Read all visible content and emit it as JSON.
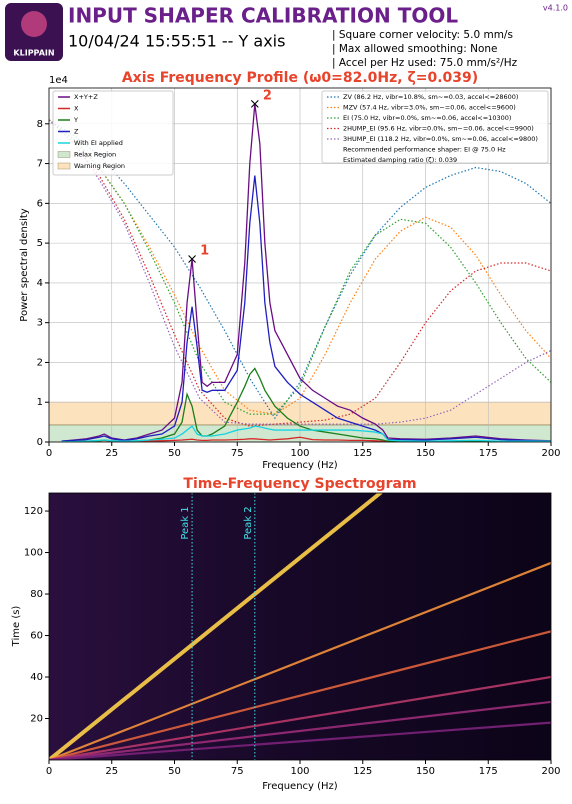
{
  "header": {
    "logo": "KLIPPAIN",
    "title": "INPUT SHAPER CALIBRATION TOOL",
    "subtitle": "10/04/24 15:55:51 -- Y axis",
    "info": [
      "| Square corner velocity: 5.0 mm/s",
      "| Max allowed smoothing: None",
      "| Accel per Hz used: 75.0 mm/s²/Hz"
    ],
    "version": "v4.1.0"
  },
  "chart_data": [
    {
      "type": "line",
      "title": "Axis Frequency Profile (ω0=82.0Hz, ζ=0.039)",
      "xlabel": "Frequency (Hz)",
      "ylabel": "Power spectral density",
      "y_offset_label": "1e4",
      "xlim": [
        0,
        200
      ],
      "ylim": [
        0,
        8.9
      ],
      "y2lim": [
        0,
        8.9
      ],
      "xticks": [
        0,
        25,
        50,
        75,
        100,
        125,
        150,
        175,
        200
      ],
      "yticks": [
        0,
        1,
        2,
        3,
        4,
        5,
        6,
        7,
        8
      ],
      "grid": true,
      "x": [
        5,
        10,
        15,
        20,
        22,
        25,
        30,
        35,
        40,
        45,
        50,
        53,
        55,
        57,
        59,
        61,
        63,
        65,
        70,
        75,
        78,
        80,
        82,
        84,
        86,
        88,
        90,
        95,
        100,
        105,
        110,
        115,
        120,
        125,
        130,
        133,
        135,
        140,
        150,
        160,
        170,
        180,
        190,
        200
      ],
      "series": [
        {
          "name": "X+Y+Z",
          "color": "#6a0d83",
          "values": [
            0.02,
            0.05,
            0.08,
            0.15,
            0.2,
            0.1,
            0.05,
            0.1,
            0.2,
            0.3,
            0.6,
            1.5,
            3.5,
            4.6,
            3.0,
            1.5,
            1.4,
            1.5,
            1.5,
            2.2,
            4.5,
            7.0,
            8.5,
            7.5,
            5.0,
            3.5,
            2.8,
            2.2,
            1.6,
            1.3,
            1.1,
            0.9,
            0.8,
            0.6,
            0.45,
            0.3,
            0.1,
            0.08,
            0.07,
            0.1,
            0.15,
            0.08,
            0.05,
            0.03
          ]
        },
        {
          "name": "X",
          "color": "#d62728",
          "values": [
            0.01,
            0.01,
            0.02,
            0.03,
            0.04,
            0.02,
            0.01,
            0.02,
            0.03,
            0.03,
            0.04,
            0.05,
            0.06,
            0.07,
            0.05,
            0.04,
            0.04,
            0.05,
            0.05,
            0.06,
            0.07,
            0.08,
            0.08,
            0.07,
            0.06,
            0.05,
            0.06,
            0.08,
            0.12,
            0.06,
            0.05,
            0.05,
            0.04,
            0.04,
            0.03,
            0.02,
            0.01,
            0.01,
            0.01,
            0.02,
            0.02,
            0.01,
            0.01,
            0.01
          ]
        },
        {
          "name": "Y",
          "color": "#1a7f1a",
          "values": [
            0.01,
            0.01,
            0.02,
            0.03,
            0.05,
            0.03,
            0.02,
            0.03,
            0.05,
            0.1,
            0.2,
            0.5,
            1.2,
            0.9,
            0.3,
            0.15,
            0.15,
            0.2,
            0.4,
            1.0,
            1.4,
            1.7,
            1.85,
            1.6,
            1.3,
            1.1,
            0.9,
            0.6,
            0.4,
            0.3,
            0.25,
            0.2,
            0.15,
            0.1,
            0.08,
            0.05,
            0.02,
            0.01,
            0.01,
            0.01,
            0.02,
            0.01,
            0.01,
            0.01
          ]
        },
        {
          "name": "Z",
          "color": "#1f1fbf",
          "values": [
            0.02,
            0.04,
            0.06,
            0.12,
            0.15,
            0.08,
            0.04,
            0.08,
            0.15,
            0.2,
            0.4,
            1.0,
            2.5,
            3.4,
            2.4,
            1.3,
            1.25,
            1.3,
            1.3,
            1.8,
            3.5,
            5.5,
            6.7,
            5.5,
            3.5,
            2.5,
            1.9,
            1.5,
            1.2,
            1.0,
            0.8,
            0.6,
            0.5,
            0.4,
            0.3,
            0.2,
            0.06,
            0.06,
            0.05,
            0.08,
            0.12,
            0.06,
            0.04,
            0.02
          ]
        },
        {
          "name": "With EI applied",
          "color": "#17d4e0",
          "values": [
            0.01,
            0.01,
            0.02,
            0.04,
            0.05,
            0.03,
            0.02,
            0.03,
            0.05,
            0.07,
            0.1,
            0.2,
            0.3,
            0.4,
            0.2,
            0.15,
            0.15,
            0.15,
            0.2,
            0.3,
            0.33,
            0.35,
            0.4,
            0.38,
            0.35,
            0.32,
            0.3,
            0.3,
            0.3,
            0.3,
            0.3,
            0.3,
            0.3,
            0.28,
            0.25,
            0.2,
            0.05,
            0.03,
            0.02,
            0.03,
            0.04,
            0.02,
            0.02,
            0.02
          ]
        }
      ],
      "regions": [
        {
          "name": "Relax Region",
          "color": "#cfe8cf",
          "range": [
            0,
            0.43
          ]
        },
        {
          "name": "Warning Region",
          "color": "#fde3bd",
          "range": [
            0.43,
            1.0
          ]
        }
      ],
      "peaks": [
        {
          "label": "1",
          "x": 57,
          "y": 4.6
        },
        {
          "label": "2",
          "x": 82,
          "y": 8.5
        }
      ],
      "shapers": [
        {
          "name": "ZV (86.2 Hz, vibr=10.8%, sm~=0.03, accel<=28600)",
          "color": "#1f77b4",
          "axis": "y2",
          "x": [
            0,
            10,
            20,
            30,
            40,
            50,
            60,
            70,
            80,
            90,
            100,
            110,
            120,
            130,
            140,
            150,
            160,
            170,
            180,
            190,
            200
          ],
          "values": [
            8.1,
            7.7,
            7.2,
            6.5,
            5.7,
            4.9,
            3.9,
            2.8,
            1.6,
            0.6,
            1.5,
            2.9,
            4.2,
            5.2,
            5.9,
            6.4,
            6.7,
            6.9,
            6.8,
            6.5,
            6.0
          ]
        },
        {
          "name": "MZV (57.4 Hz, vibr=3.0%, sm~=0.06, accel<=9600)",
          "color": "#ff7f0e",
          "axis": "y2",
          "x": [
            0,
            10,
            20,
            30,
            40,
            50,
            60,
            70,
            80,
            90,
            100,
            110,
            120,
            130,
            140,
            150,
            160,
            170,
            180,
            190,
            200
          ],
          "values": [
            8.1,
            7.6,
            6.9,
            6.0,
            4.9,
            3.7,
            2.4,
            1.3,
            0.8,
            0.7,
            1.1,
            2.2,
            3.5,
            4.6,
            5.3,
            5.65,
            5.4,
            4.7,
            3.7,
            2.8,
            2.1
          ]
        },
        {
          "name": "EI (75.0 Hz, vibr=0.0%, sm~=0.06, accel<=10300)",
          "color": "#2ca02c",
          "axis": "y2",
          "x": [
            0,
            10,
            20,
            30,
            40,
            50,
            60,
            70,
            80,
            90,
            100,
            110,
            120,
            130,
            140,
            150,
            160,
            170,
            180,
            190,
            200
          ],
          "values": [
            8.1,
            7.6,
            6.9,
            6.0,
            4.8,
            3.5,
            2.0,
            1.0,
            0.7,
            0.7,
            1.4,
            2.9,
            4.3,
            5.2,
            5.6,
            5.5,
            4.9,
            4.0,
            3.0,
            2.1,
            1.5
          ]
        },
        {
          "name": "2HUMP_EI (95.6 Hz, vibr=0.0%, sm~=0.06, accel<=9900)",
          "color": "#d62728",
          "axis": "y2",
          "x": [
            0,
            10,
            20,
            30,
            40,
            50,
            60,
            70,
            80,
            90,
            100,
            110,
            120,
            130,
            140,
            150,
            160,
            170,
            180,
            190,
            200
          ],
          "values": [
            8.1,
            7.5,
            6.7,
            5.6,
            4.2,
            2.7,
            1.3,
            0.6,
            0.4,
            0.45,
            0.5,
            0.55,
            0.7,
            1.1,
            2.0,
            3.0,
            3.8,
            4.3,
            4.5,
            4.5,
            4.3
          ]
        },
        {
          "name": "3HUMP_EI (118.2 Hz, vibr=0.0%, sm~=0.06, accel<=9800)",
          "color": "#9467bd",
          "axis": "y2",
          "x": [
            0,
            10,
            20,
            30,
            40,
            50,
            60,
            70,
            80,
            90,
            100,
            110,
            120,
            130,
            140,
            150,
            160,
            170,
            180,
            190,
            200
          ],
          "values": [
            8.1,
            7.5,
            6.6,
            5.5,
            4.0,
            2.4,
            1.1,
            0.5,
            0.45,
            0.45,
            0.45,
            0.45,
            0.45,
            0.45,
            0.5,
            0.6,
            0.8,
            1.2,
            1.6,
            2.0,
            2.3
          ]
        }
      ],
      "recommendation": "Recommended performance shaper: EI @ 75.0 Hz",
      "damping": "Estimated damping ratio (ζ): 0.039"
    },
    {
      "type": "spectrogram",
      "title": "Time-Frequency Spectrogram",
      "xlabel": "Frequency (Hz)",
      "ylabel": "Time (s)",
      "xlim": [
        0,
        200
      ],
      "ylim": [
        0,
        128.7
      ],
      "xticks": [
        0,
        25,
        50,
        75,
        100,
        125,
        150,
        175,
        200
      ],
      "yticks": [
        20,
        40,
        60,
        80,
        100,
        120
      ],
      "peak_lines": [
        {
          "label": "Peak 1",
          "x": 57,
          "color": "#3fe0e8"
        },
        {
          "label": "Peak 2",
          "x": 82,
          "color": "#3fe0e8"
        }
      ],
      "ridges": [
        {
          "x": [
            0,
            132
          ],
          "y": [
            0,
            128.7
          ],
          "color": "#ffd24a"
        },
        {
          "x": [
            0,
            200
          ],
          "y": [
            0,
            95
          ],
          "color": "#f4913a"
        },
        {
          "x": [
            0,
            200
          ],
          "y": [
            0,
            62
          ],
          "color": "#e0623c"
        },
        {
          "x": [
            0,
            200
          ],
          "y": [
            0,
            40
          ],
          "color": "#b8386a"
        },
        {
          "x": [
            0,
            200
          ],
          "y": [
            0,
            28
          ],
          "color": "#9a2c78"
        },
        {
          "x": [
            0,
            200
          ],
          "y": [
            0,
            18
          ],
          "color": "#7c227a"
        }
      ]
    }
  ]
}
